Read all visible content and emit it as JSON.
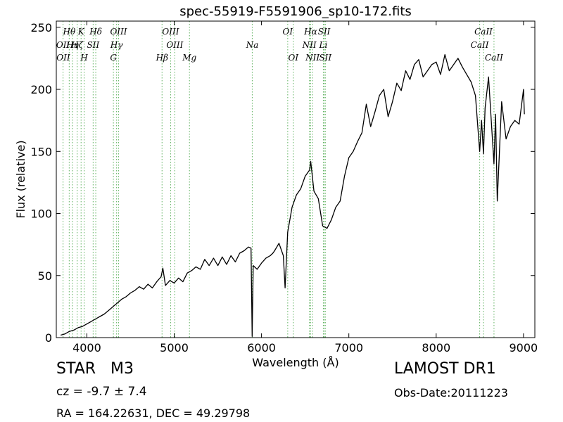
{
  "chart_data": {
    "type": "line",
    "title": "spec-55919-F5591906_sp10-172.fits",
    "xlabel": "Wavelength (Å)",
    "ylabel": "Flux (relative)",
    "xlim": [
      3650,
      9130
    ],
    "ylim": [
      0,
      255
    ],
    "xticks": [
      4000,
      5000,
      6000,
      7000,
      8000,
      9000
    ],
    "yticks": [
      0,
      50,
      100,
      150,
      200,
      250
    ],
    "grid": false,
    "series": [
      {
        "color": "#000000",
        "x": [
          3700,
          3750,
          3800,
          3850,
          3900,
          3950,
          4000,
          4050,
          4100,
          4150,
          4200,
          4250,
          4300,
          4350,
          4400,
          4450,
          4500,
          4550,
          4600,
          4650,
          4700,
          4750,
          4800,
          4850,
          4870,
          4900,
          4950,
          5000,
          5050,
          5100,
          5150,
          5200,
          5250,
          5300,
          5350,
          5400,
          5450,
          5500,
          5550,
          5600,
          5650,
          5700,
          5750,
          5800,
          5850,
          5880,
          5893,
          5905,
          5950,
          6000,
          6050,
          6100,
          6130,
          6150,
          6200,
          6250,
          6270,
          6300,
          6350,
          6400,
          6450,
          6500,
          6550,
          6563,
          6600,
          6650,
          6700,
          6750,
          6800,
          6850,
          6900,
          6950,
          7000,
          7050,
          7100,
          7150,
          7200,
          7250,
          7300,
          7350,
          7400,
          7450,
          7500,
          7550,
          7600,
          7650,
          7700,
          7750,
          7800,
          7850,
          7900,
          7950,
          8000,
          8050,
          8100,
          8150,
          8200,
          8250,
          8300,
          8350,
          8400,
          8450,
          8498,
          8520,
          8542,
          8560,
          8600,
          8662,
          8680,
          8700,
          8750,
          8800,
          8850,
          8900,
          8950,
          9000,
          9010
        ],
        "y": [
          2,
          3,
          5,
          6,
          8,
          9,
          11,
          13,
          15,
          17,
          19,
          22,
          25,
          28,
          31,
          33,
          36,
          38,
          41,
          39,
          43,
          40,
          45,
          49,
          56,
          42,
          46,
          44,
          48,
          45,
          52,
          54,
          57,
          55,
          63,
          58,
          64,
          58,
          65,
          59,
          66,
          61,
          68,
          70,
          73,
          72,
          1,
          58,
          55,
          60,
          64,
          66,
          68,
          70,
          76,
          66,
          40,
          85,
          105,
          115,
          120,
          130,
          135,
          142,
          118,
          112,
          90,
          88,
          95,
          105,
          110,
          130,
          145,
          150,
          158,
          165,
          188,
          170,
          182,
          195,
          200,
          178,
          190,
          205,
          199,
          215,
          208,
          220,
          224,
          210,
          215,
          220,
          222,
          212,
          228,
          215,
          220,
          225,
          218,
          212,
          206,
          195,
          150,
          175,
          148,
          185,
          210,
          140,
          180,
          110,
          190,
          160,
          170,
          175,
          172,
          200,
          180
        ]
      }
    ],
    "spectral_lines": [
      {
        "label": "Hθ",
        "wavelength": 3798,
        "row": 0
      },
      {
        "label": "OII",
        "wavelength": 3727,
        "row": 1
      },
      {
        "label": "OII",
        "wavelength": 3730,
        "row": 2
      },
      {
        "label": "Hη",
        "wavelength": 3835,
        "row": 1
      },
      {
        "label": "Hζ",
        "wavelength": 3889,
        "row": 1
      },
      {
        "label": "SII",
        "wavelength": 4072,
        "row": 1
      },
      {
        "label": "K",
        "wavelength": 3934,
        "row": 0
      },
      {
        "label": "H",
        "wavelength": 3969,
        "row": 2
      },
      {
        "label": "Hδ",
        "wavelength": 4102,
        "row": 0
      },
      {
        "label": "OIII",
        "wavelength": 4363,
        "row": 0
      },
      {
        "label": "Hγ",
        "wavelength": 4340,
        "row": 1
      },
      {
        "label": "G",
        "wavelength": 4304,
        "row": 2
      },
      {
        "label": "OIII",
        "wavelength": 4959,
        "row": 0
      },
      {
        "label": "Hβ",
        "wavelength": 4861,
        "row": 2
      },
      {
        "label": "OIII",
        "wavelength": 5007,
        "row": 3
      },
      {
        "label": "Mg",
        "wavelength": 5175,
        "row": 2
      },
      {
        "label": "Na",
        "wavelength": 5894,
        "row": 3
      },
      {
        "label": "OI",
        "wavelength": 6300,
        "row": 0
      },
      {
        "label": "OI",
        "wavelength": 6364,
        "row": 2
      },
      {
        "label": "Hα",
        "wavelength": 6563,
        "row": 0
      },
      {
        "label": "NII",
        "wavelength": 6548,
        "row": 1
      },
      {
        "label": "NII",
        "wavelength": 6584,
        "row": 2
      },
      {
        "label": "SII",
        "wavelength": 6717,
        "row": 0
      },
      {
        "label": "SII",
        "wavelength": 6731,
        "row": 2
      },
      {
        "label": "Li",
        "wavelength": 6708,
        "row": 1
      },
      {
        "label": "CaII",
        "wavelength": 8542,
        "row": 0
      },
      {
        "label": "CaII",
        "wavelength": 8498,
        "row": 1
      },
      {
        "label": "CaII",
        "wavelength": 8662,
        "row": 2
      }
    ],
    "line_marker_color": "#6db86d"
  },
  "info": {
    "object_type": "STAR",
    "subclass": "M3",
    "cz": "cz = -9.7 ± 7.4",
    "coords": "RA = 164.22631, DEC = 49.29798",
    "survey": "LAMOST DR1",
    "obs_date": "Obs-Date:20111223"
  }
}
